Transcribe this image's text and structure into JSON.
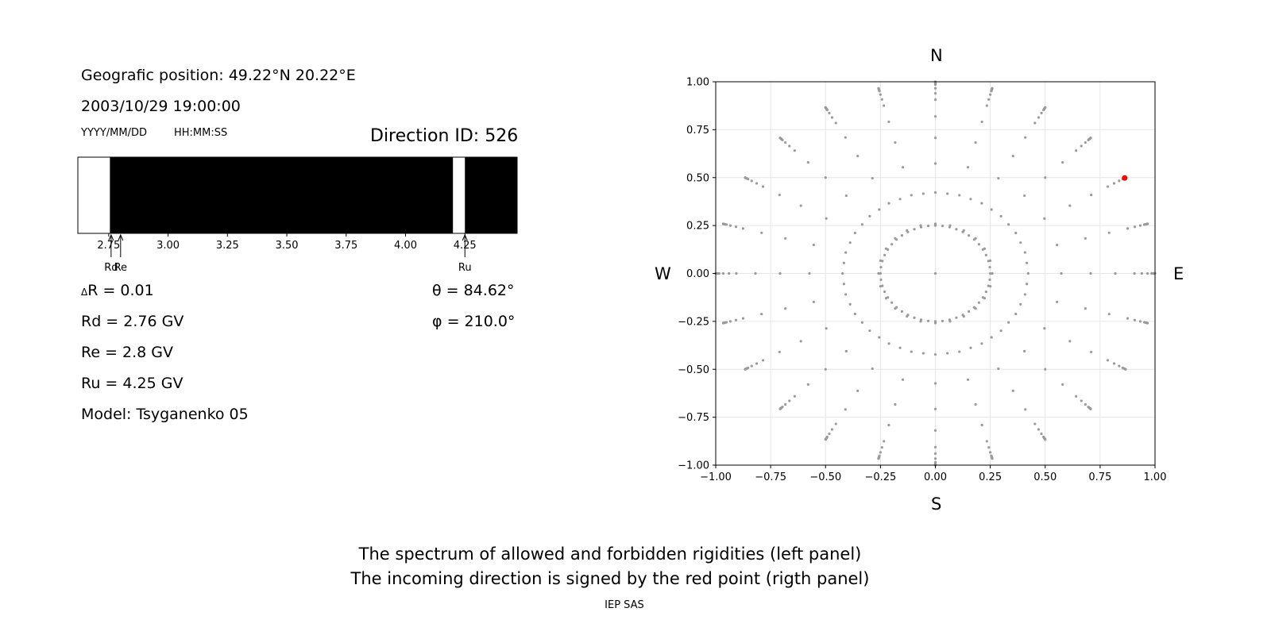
{
  "header": {
    "position": "Geografic position: 49.22°N 20.22°E",
    "datetime": "2003/10/29 19:00:00",
    "date_format": "YYYY/MM/DD",
    "time_format": "HH:MM:SS",
    "direction_id": "Direction ID: 526"
  },
  "results": {
    "delta_r": "R = 0.01",
    "delta_symbol": "Δ",
    "rd": "Rd = 2.76 GV",
    "re": "Re = 2.8 GV",
    "ru": "Ru = 4.25 GV",
    "model": "Model: Tsyganenko 05",
    "theta": "θ = 84.62°",
    "phi": "φ = 210.0°"
  },
  "compass": {
    "north": "N",
    "south": "S",
    "west": "W",
    "east": "E"
  },
  "footer": {
    "line1": "The spectrum of allowed and forbidden rigidities (left panel)",
    "line2": "The incoming direction is signed by the red point (rigth panel)",
    "credit": "IEP SAS"
  },
  "colors": {
    "allowed": "#000000",
    "forbidden": "#ffffff",
    "grid_points": "#9a9a9a",
    "selected_point": "#ff0000"
  },
  "chart_data": [
    {
      "type": "bar",
      "description_text": "rigidity spectrum strip",
      "xlim": [
        2.62,
        4.47
      ],
      "xticks": [
        2.75,
        3.0,
        3.25,
        3.5,
        3.75,
        4.0,
        4.25
      ],
      "xtick_labels": [
        "2.75",
        "3.00",
        "3.25",
        "3.50",
        "3.75",
        "4.00",
        "4.25"
      ],
      "segments": [
        {
          "from": 2.62,
          "to": 2.755,
          "allowed": false
        },
        {
          "from": 2.755,
          "to": 4.2,
          "allowed": true
        },
        {
          "from": 4.2,
          "to": 4.25,
          "allowed": false
        },
        {
          "from": 4.25,
          "to": 4.47,
          "allowed": true
        }
      ],
      "markers": [
        {
          "label": "Rd",
          "value": 2.76
        },
        {
          "label": "Re",
          "value": 2.8
        },
        {
          "label": "Ru",
          "value": 4.25
        }
      ]
    },
    {
      "type": "scatter",
      "xlim": [
        -1,
        1
      ],
      "ylim": [
        -1,
        1
      ],
      "xticks": [
        -1.0,
        -0.75,
        -0.5,
        -0.25,
        0.0,
        0.25,
        0.5,
        0.75,
        1.0
      ],
      "xtick_labels": [
        "−1.00",
        "−0.75",
        "−0.50",
        "−0.25",
        "0.00",
        "0.25",
        "0.50",
        "0.75",
        "1.00"
      ],
      "yticks": [
        -1.0,
        -0.75,
        -0.5,
        -0.25,
        0.0,
        0.25,
        0.5,
        0.75,
        1.0
      ],
      "ytick_labels": [
        "−1.00",
        "−0.75",
        "−0.50",
        "−0.25",
        "0.00",
        "0.25",
        "0.50",
        "0.75",
        "1.00"
      ],
      "grid": true,
      "zenith_angles_deg": [
        0,
        15,
        25,
        35,
        45,
        55,
        65,
        70,
        75,
        80,
        82,
        84,
        86,
        88,
        90
      ],
      "azimuth_step_deg": 15,
      "selected_point": {
        "x": 0.862,
        "y": 0.498
      }
    }
  ]
}
